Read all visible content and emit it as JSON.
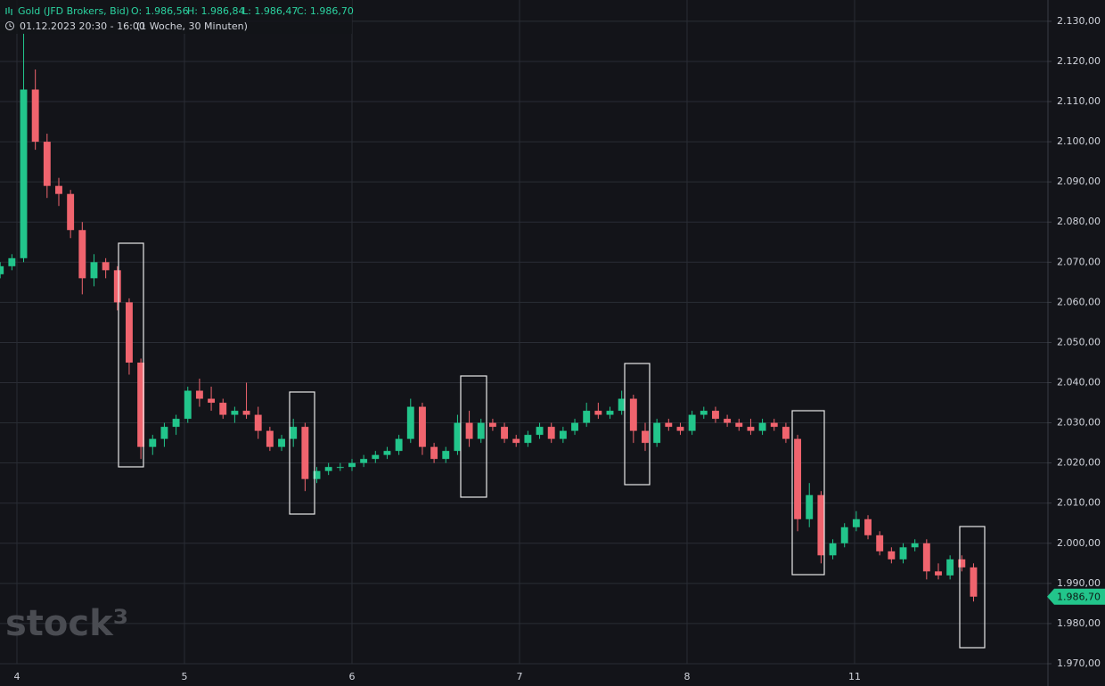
{
  "chart_data": {
    "type": "candlestick",
    "title": "Gold (JFD Brokers, Bid)",
    "legend_ohlc": [
      "O: 1.986,56",
      "H: 1.986,84",
      "L: 1.986,47",
      "C: 1.986,70"
    ],
    "subtitle": "01.12.2023 20:30 - 16:00",
    "period": "(1 Woche, 30 Minuten)",
    "watermark": "stock³",
    "up_color": "#22c58b",
    "down_color": "#f0646e",
    "xlim": [
      -0.101,
      6.149
    ],
    "xticks": [
      {
        "value": 0,
        "label": "4"
      },
      {
        "value": 1,
        "label": "5"
      },
      {
        "value": 2,
        "label": "6"
      },
      {
        "value": 3,
        "label": "7"
      },
      {
        "value": 4,
        "label": "8"
      },
      {
        "value": 5,
        "label": "11"
      }
    ],
    "ylim": [
      1970,
      2135.3
    ],
    "yticks": [
      {
        "value": 1970,
        "label": "1.970,00"
      },
      {
        "value": 1980,
        "label": "1.980,00"
      },
      {
        "value": 1990,
        "label": "1.990,00"
      },
      {
        "value": 2000,
        "label": "2.000,00"
      },
      {
        "value": 2010,
        "label": "2.010,00"
      },
      {
        "value": 2020,
        "label": "2.020,00"
      },
      {
        "value": 2030,
        "label": "2.030,00"
      },
      {
        "value": 2040,
        "label": "2.040,00"
      },
      {
        "value": 2050,
        "label": "2.050,00"
      },
      {
        "value": 2060,
        "label": "2.060,00"
      },
      {
        "value": 2070,
        "label": "2.070,00"
      },
      {
        "value": 2080,
        "label": "2.080,00"
      },
      {
        "value": 2090,
        "label": "2.090,00"
      },
      {
        "value": 2100,
        "label": "2.100,00"
      },
      {
        "value": 2110,
        "label": "2.110,00"
      },
      {
        "value": 2120,
        "label": "2.120,00"
      },
      {
        "value": 2130,
        "label": "2.130,00"
      }
    ],
    "grid": true,
    "last_price": {
      "value": 1986.7,
      "label": "1.986,70"
    },
    "x": [
      -0.1,
      -0.03,
      0.04,
      0.11,
      0.18,
      0.25,
      0.32,
      0.39,
      0.46,
      0.53,
      0.6,
      0.67,
      0.74,
      0.81,
      0.88,
      0.95,
      1.02,
      1.09,
      1.16,
      1.23,
      1.3,
      1.37,
      1.44,
      1.51,
      1.58,
      1.65,
      1.72,
      1.79,
      1.86,
      1.93,
      2,
      2.07,
      2.14,
      2.21,
      2.28,
      2.35,
      2.42,
      2.49,
      2.56,
      2.63,
      2.7,
      2.77,
      2.84,
      2.91,
      2.98,
      3.05,
      3.12,
      3.19,
      3.26,
      3.33,
      3.4,
      3.47,
      3.54,
      3.61,
      3.68,
      3.75,
      3.82,
      3.89,
      3.96,
      4.03,
      4.1,
      4.17,
      4.24,
      4.31,
      4.38,
      4.45,
      4.52,
      4.59,
      4.66,
      4.73,
      4.8,
      4.87,
      4.94,
      5.01,
      5.08,
      5.15,
      5.22,
      5.29,
      5.36,
      5.43,
      5.5,
      5.57,
      5.64,
      5.71
    ],
    "open": [
      2067,
      2069,
      2071,
      2113,
      2100,
      2089,
      2087,
      2078,
      2066,
      2070,
      2068,
      2060,
      2045,
      2024,
      2026,
      2029,
      2031,
      2038,
      2036,
      2035,
      2032,
      2033,
      2032,
      2028,
      2024,
      2026,
      2029,
      2016,
      2018,
      2019,
      2019,
      2020,
      2021,
      2022,
      2023,
      2026,
      2034,
      2024,
      2021,
      2023,
      2030,
      2026,
      2030,
      2029,
      2026,
      2025,
      2027,
      2029,
      2026,
      2028,
      2030,
      2033,
      2032,
      2033,
      2036,
      2028,
      2025,
      2030,
      2029,
      2028,
      2032,
      2033,
      2031,
      2030,
      2029,
      2028,
      2030,
      2029,
      2026,
      2006,
      2012,
      1997,
      2000,
      2004,
      2006,
      2002,
      1998,
      1996,
      1999,
      2000,
      1993,
      1992,
      1996,
      1994
    ],
    "high": [
      2070,
      2072,
      2127,
      2118,
      2102,
      2091,
      2088,
      2080,
      2072,
      2071,
      2069,
      2061,
      2046,
      2027,
      2030,
      2032,
      2039,
      2041,
      2039,
      2036,
      2034,
      2040,
      2034,
      2029,
      2027,
      2031,
      2030,
      2019,
      2020,
      2020,
      2021,
      2022,
      2023,
      2024,
      2027,
      2036,
      2035,
      2025,
      2024,
      2032,
      2033,
      2031,
      2031,
      2030,
      2027,
      2028,
      2030,
      2030,
      2029,
      2031,
      2035,
      2035,
      2034,
      2038,
      2037,
      2030,
      2031,
      2031,
      2030,
      2033,
      2034,
      2034,
      2032,
      2031,
      2031,
      2031,
      2031,
      2030,
      2027,
      2015,
      2013,
      2001,
      2005,
      2008,
      2007,
      2003,
      1999,
      2000,
      2001,
      2001,
      1995,
      1997,
      1997,
      1995
    ],
    "low": [
      2066,
      2068,
      2070,
      2098,
      2086,
      2084,
      2076,
      2062,
      2064,
      2066,
      2058,
      2042,
      2021,
      2022,
      2024,
      2027,
      2030,
      2034,
      2033,
      2031,
      2030,
      2031,
      2026,
      2023,
      2023,
      2024,
      2013,
      2015,
      2017,
      2018,
      2018,
      2019,
      2020,
      2021,
      2022,
      2025,
      2022,
      2020,
      2020,
      2022,
      2024,
      2025,
      2028,
      2025,
      2024,
      2024,
      2026,
      2025,
      2025,
      2027,
      2029,
      2031,
      2031,
      2032,
      2025,
      2023,
      2024,
      2028,
      2027,
      2027,
      2031,
      2030,
      2029,
      2028,
      2027,
      2027,
      2028,
      2025,
      2003,
      2004,
      1995,
      1996,
      1999,
      2003,
      2001,
      1997,
      1995,
      1995,
      1998,
      1991,
      1991,
      1991,
      1993,
      1985.5
    ],
    "close": [
      2069,
      2071,
      2113,
      2100,
      2089,
      2087,
      2078,
      2066,
      2070,
      2068,
      2060,
      2045,
      2024,
      2026,
      2029,
      2031,
      2038,
      2036,
      2035,
      2032,
      2033,
      2032,
      2028,
      2024,
      2026,
      2029,
      2016,
      2018,
      2019,
      2019,
      2020,
      2021,
      2022,
      2023,
      2026,
      2034,
      2024,
      2021,
      2023,
      2030,
      2026,
      2030,
      2029,
      2026,
      2025,
      2027,
      2029,
      2026,
      2028,
      2030,
      2033,
      2032,
      2033,
      2036,
      2028,
      2025,
      2030,
      2029,
      2028,
      2032,
      2033,
      2031,
      2030,
      2029,
      2028,
      2030,
      2029,
      2026,
      2006,
      2012,
      1997,
      2000,
      2004,
      2006,
      2002,
      1998,
      1996,
      1999,
      2000,
      1993,
      1992,
      1996,
      1994,
      1986.7
    ]
  }
}
